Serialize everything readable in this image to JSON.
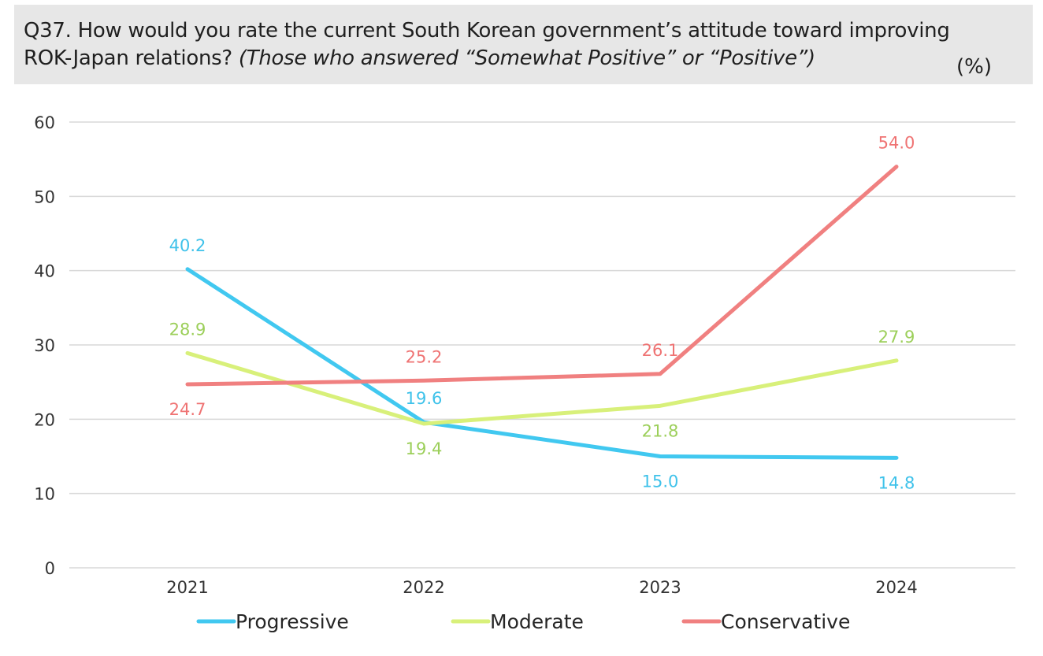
{
  "header": {
    "title_main": "Q37. How would you rate the current South Korean government’s attitude toward improving",
    "title_line2_plain": "ROK-Japan relations? ",
    "title_line2_italic": "(Those who answered “Somewhat Positive” or “Positive”)",
    "unit": "(%)"
  },
  "chart_data": {
    "type": "line",
    "categories": [
      "2021",
      "2022",
      "2023",
      "2024"
    ],
    "ylim": [
      0,
      60
    ],
    "yticks": [
      0,
      10,
      20,
      30,
      40,
      50,
      60
    ],
    "grid": true,
    "legend_position": "bottom",
    "series": [
      {
        "name": "Progressive",
        "values": [
          40.2,
          19.6,
          15.0,
          14.8
        ],
        "labels": [
          "40.2",
          "19.6",
          "15.0",
          "14.8"
        ],
        "label_pos": [
          "above",
          "above",
          "below",
          "below"
        ],
        "color": "#41c8f0"
      },
      {
        "name": "Moderate",
        "values": [
          28.9,
          19.4,
          21.8,
          27.9
        ],
        "labels": [
          "28.9",
          "19.4",
          "21.8",
          "27.9"
        ],
        "label_pos": [
          "above",
          "below",
          "below",
          "above"
        ],
        "color": "#d8f07a"
      },
      {
        "name": "Conservative",
        "values": [
          24.7,
          25.2,
          26.1,
          54.0
        ],
        "labels": [
          "24.7",
          "25.2",
          "26.1",
          "54.0"
        ],
        "label_pos": [
          "below",
          "above",
          "above",
          "above"
        ],
        "color": "#f08080"
      }
    ],
    "label_colors": {
      "Progressive": "#3fc2ea",
      "Moderate": "#9ccf5a",
      "Conservative": "#ef7373"
    }
  }
}
